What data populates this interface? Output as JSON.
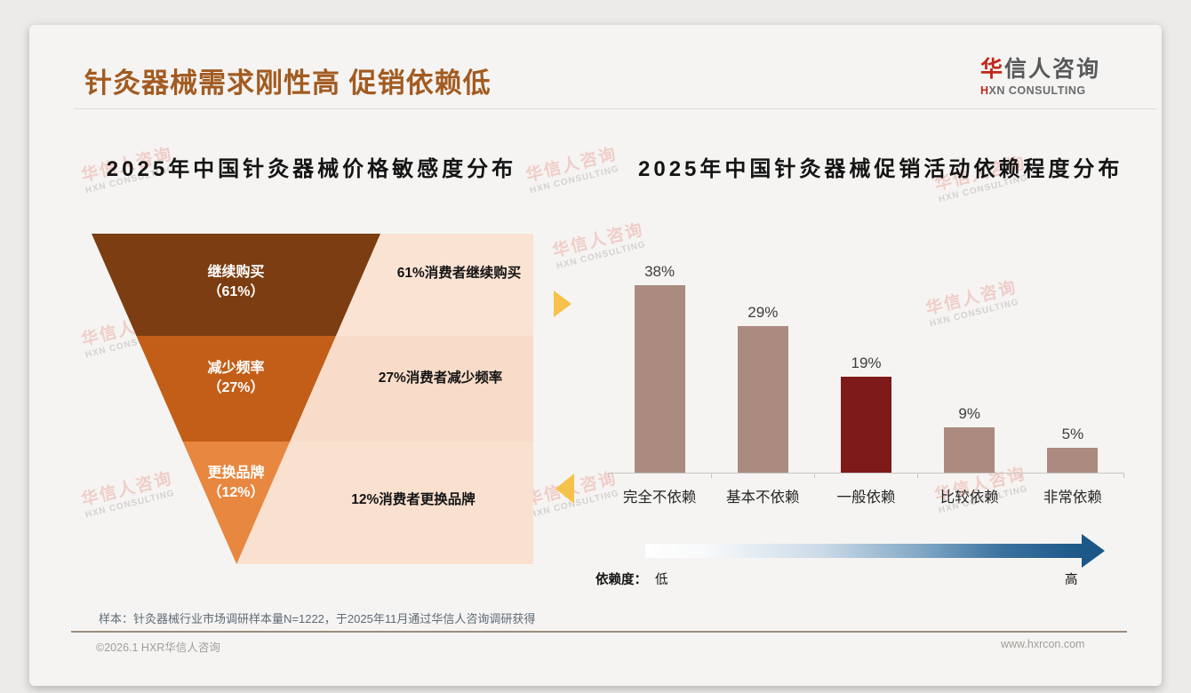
{
  "header": {
    "title": "针灸器械需求刚性高 促销依赖低",
    "logo": {
      "cn_accent": "华",
      "cn_rest": "信人咨询",
      "en_accent": "H",
      "en_rest": "XN CONSULTING"
    }
  },
  "watermark": {
    "cn": "华信人咨询",
    "en": "HXN CONSULTING"
  },
  "colors": {
    "title_brown": "#A25B21",
    "accent_red": "#C1271B",
    "funnel_tier1": "#7B3D11",
    "funnel_tier2": "#C35E18",
    "funnel_tier3": "#E8873F",
    "panel_row1": "#FAE3D3",
    "panel_row2": "#F8DCC9",
    "panel_row3": "#F9E0CF",
    "bar_default": "#AB8B80",
    "bar_highlight": "#7E1A1A",
    "arrow_yellow": "#F6C24B",
    "gradient_arrow_end": "#1C5787"
  },
  "chart_data": [
    {
      "type": "funnel",
      "title": "2025年中国针灸器械价格敏感度分布",
      "segments": [
        {
          "label": "继续购买",
          "value": 61,
          "value_label": "（61%）",
          "note": "61%消费者继续购买"
        },
        {
          "label": "减少频率",
          "value": 27,
          "value_label": "（27%）",
          "note": "27%消费者减少频率"
        },
        {
          "label": "更换品牌",
          "value": 12,
          "value_label": "（12%）",
          "note": "12%消费者更换品牌"
        }
      ]
    },
    {
      "type": "bar",
      "title": "2025年中国针灸器械促销活动依赖程度分布",
      "categories": [
        "完全不依赖",
        "基本不依赖",
        "一般依赖",
        "比较依赖",
        "非常依赖"
      ],
      "values": [
        38,
        29,
        19,
        9,
        5
      ],
      "value_labels": [
        "38%",
        "29%",
        "19%",
        "9%",
        "5%"
      ],
      "highlight_index": 2,
      "ylim": [
        0,
        41
      ],
      "grid": false,
      "axis_note": {
        "label": "依赖度：",
        "low": "低",
        "high": "高"
      }
    }
  ],
  "footnote": "样本：针灸器械行业市场调研样本量N=1222，于2025年11月通过华信人咨询调研获得",
  "footer": {
    "copyright": "©2026.1 HXR华信人咨询",
    "website": "www.hxrcon.com"
  }
}
